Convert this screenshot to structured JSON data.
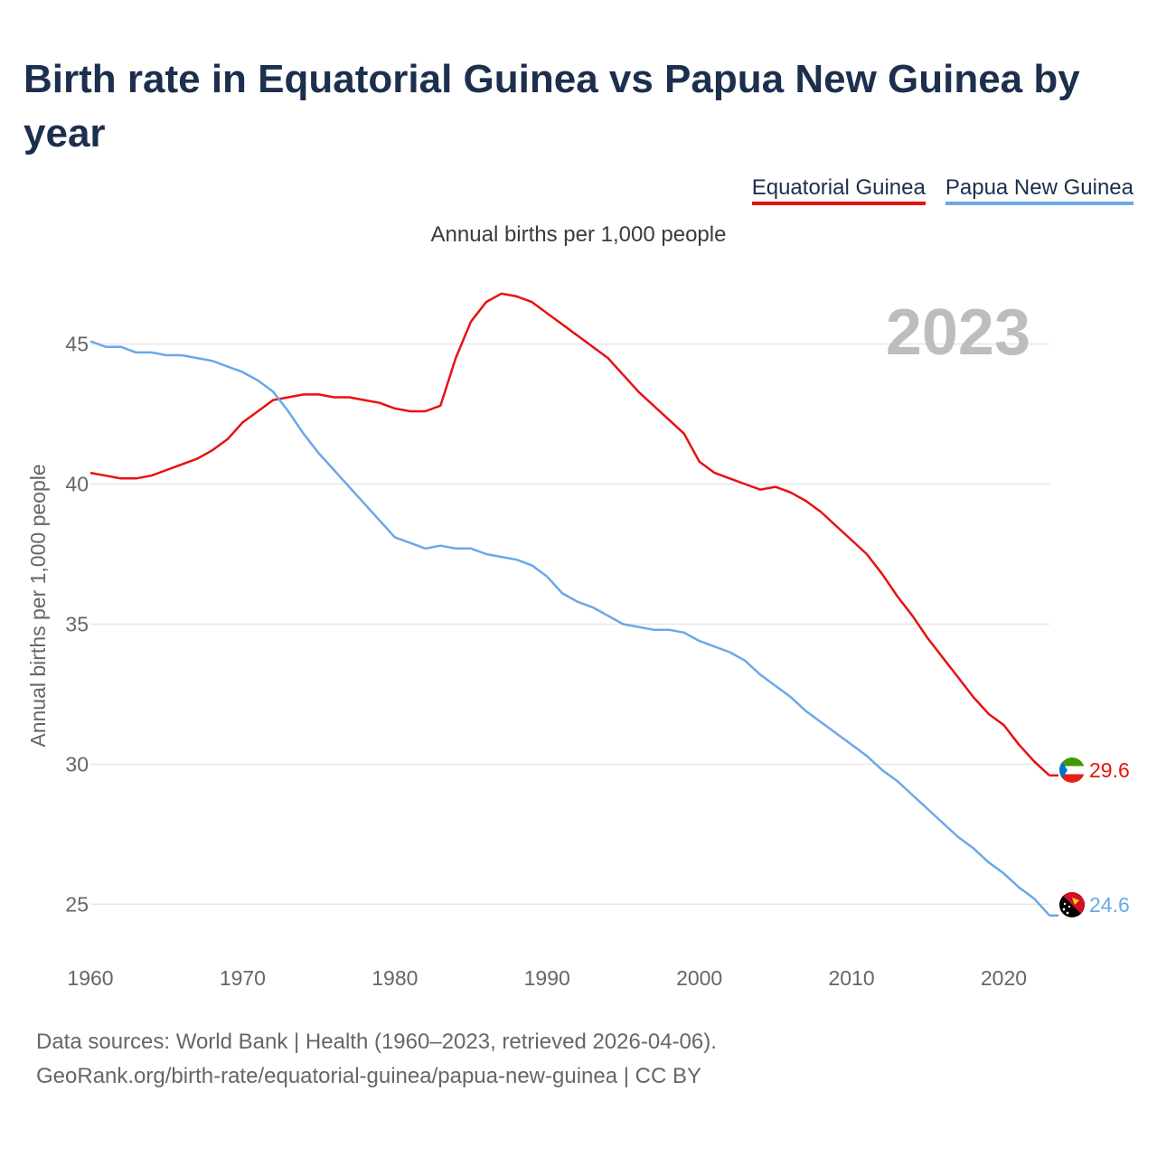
{
  "title": "Birth rate in Equatorial Guinea vs Papua New Guinea by year",
  "subtitle": "Annual births per 1,000 people",
  "legend": [
    "Equatorial Guinea",
    "Papua New Guinea"
  ],
  "year_display": "2023",
  "footer": {
    "line1": "Data sources: World Bank | Health (1960–2023, retrieved 2026-04-06).",
    "line2": "GeoRank.org/birth-rate/equatorial-guinea/papua-new-guinea | CC BY"
  },
  "colors": {
    "eq": "#e8110f",
    "png": "#6aa8e8",
    "grid": "#e6e6e6"
  },
  "chart_data": {
    "type": "line",
    "title": "Birth rate in Equatorial Guinea vs Papua New Guinea by year",
    "ylabel": "Annual births per 1,000 people",
    "xlabel": "",
    "xlim": [
      1960,
      2023
    ],
    "ylim": [
      23.4,
      47.6
    ],
    "xticks": [
      1960,
      1970,
      1980,
      1990,
      2000,
      2010,
      2020
    ],
    "xtick_labels": [
      "1960",
      "1970",
      "1980",
      "1990",
      "2000",
      "2010",
      "2020"
    ],
    "yticks": [
      25,
      30,
      35,
      40,
      45
    ],
    "ytick_labels": [
      "25",
      "30",
      "35",
      "40",
      "45"
    ],
    "x": [
      1960,
      1961,
      1962,
      1963,
      1964,
      1965,
      1966,
      1967,
      1968,
      1969,
      1970,
      1971,
      1972,
      1973,
      1974,
      1975,
      1976,
      1977,
      1978,
      1979,
      1980,
      1981,
      1982,
      1983,
      1984,
      1985,
      1986,
      1987,
      1988,
      1989,
      1990,
      1991,
      1992,
      1993,
      1994,
      1995,
      1996,
      1997,
      1998,
      1999,
      2000,
      2001,
      2002,
      2003,
      2004,
      2005,
      2006,
      2007,
      2008,
      2009,
      2010,
      2011,
      2012,
      2013,
      2014,
      2015,
      2016,
      2017,
      2018,
      2019,
      2020,
      2021,
      2022,
      2023
    ],
    "series": [
      {
        "name": "Equatorial Guinea",
        "end_label": "29.6",
        "values": [
          40.4,
          40.3,
          40.2,
          40.2,
          40.3,
          40.5,
          40.7,
          40.9,
          41.2,
          41.6,
          42.2,
          42.6,
          43.0,
          43.1,
          43.2,
          43.2,
          43.1,
          43.1,
          43.0,
          42.9,
          42.7,
          42.6,
          42.6,
          42.8,
          44.5,
          45.8,
          46.5,
          46.8,
          46.7,
          46.5,
          46.1,
          45.7,
          45.3,
          44.9,
          44.5,
          43.9,
          43.3,
          42.8,
          42.3,
          41.8,
          40.8,
          40.4,
          40.2,
          40.0,
          39.8,
          39.9,
          39.7,
          39.4,
          39.0,
          38.5,
          38.0,
          37.5,
          36.8,
          36.0,
          35.3,
          34.5,
          33.8,
          33.1,
          32.4,
          31.8,
          31.4,
          30.7,
          30.1,
          29.6
        ]
      },
      {
        "name": "Papua New Guinea",
        "end_label": "24.6",
        "values": [
          45.1,
          44.9,
          44.9,
          44.7,
          44.7,
          44.6,
          44.6,
          44.5,
          44.4,
          44.2,
          44.0,
          43.7,
          43.3,
          42.6,
          41.8,
          41.1,
          40.5,
          39.9,
          39.3,
          38.7,
          38.1,
          37.9,
          37.7,
          37.8,
          37.7,
          37.7,
          37.5,
          37.4,
          37.3,
          37.1,
          36.7,
          36.1,
          35.8,
          35.6,
          35.3,
          35.0,
          34.9,
          34.8,
          34.8,
          34.7,
          34.4,
          34.2,
          34.0,
          33.7,
          33.2,
          32.8,
          32.4,
          31.9,
          31.5,
          31.1,
          30.7,
          30.3,
          29.8,
          29.4,
          28.9,
          28.4,
          27.9,
          27.4,
          27.0,
          26.5,
          26.1,
          25.6,
          25.2,
          24.6
        ]
      }
    ]
  }
}
